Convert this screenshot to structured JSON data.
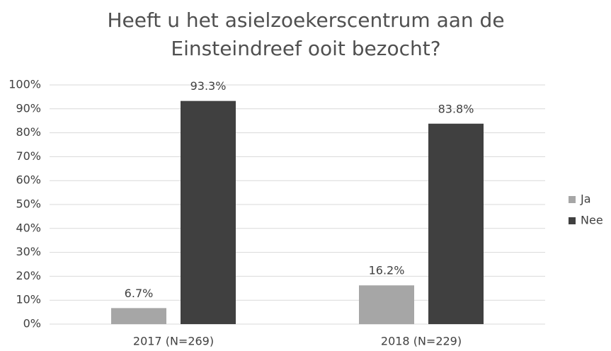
{
  "chart_data": {
    "type": "bar",
    "title": [
      "Heeft u het asielzoekerscentrum aan de",
      "Einsteindreef ooit bezocht?"
    ],
    "categories": [
      "2017 (N=269)",
      "2018 (N=229)"
    ],
    "series": [
      {
        "name": "Ja",
        "color": "#a6a6a6",
        "values": [
          6.7,
          16.2
        ],
        "value_labels": [
          "6.7%",
          "16.2%"
        ]
      },
      {
        "name": "Nee",
        "color": "#404040",
        "values": [
          93.3,
          83.8
        ],
        "value_labels": [
          "93.3%",
          "83.8%"
        ]
      }
    ],
    "ylim": [
      0,
      100
    ],
    "yticks": [
      {
        "value": 0,
        "label": "0%"
      },
      {
        "value": 10,
        "label": "10%"
      },
      {
        "value": 20,
        "label": "20%"
      },
      {
        "value": 30,
        "label": "30%"
      },
      {
        "value": 40,
        "label": "40%"
      },
      {
        "value": 50,
        "label": "50%"
      },
      {
        "value": 60,
        "label": "60%"
      },
      {
        "value": 70,
        "label": "70%"
      },
      {
        "value": 80,
        "label": "80%"
      },
      {
        "value": 90,
        "label": "90%"
      },
      {
        "value": 100,
        "label": "100%"
      }
    ],
    "grid": true,
    "legend": "right"
  }
}
